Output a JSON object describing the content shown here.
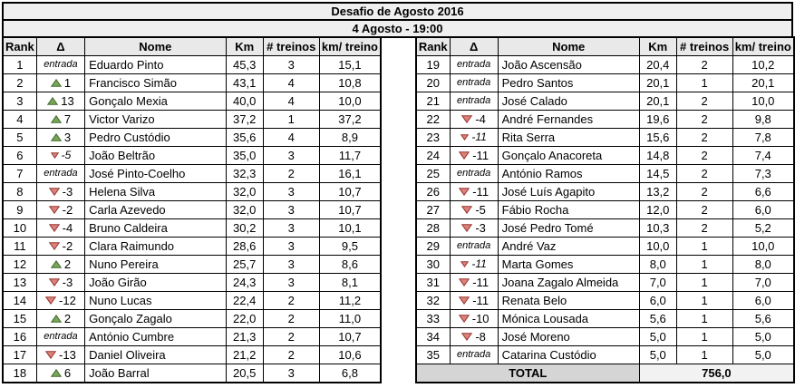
{
  "title": "Desafio de Agosto 2016",
  "subtitle": "4 Agosto - 19:00",
  "column_headers": [
    "Rank",
    "Δ",
    "Nome",
    "Km",
    "# treinos",
    "km/ treino"
  ],
  "colors": {
    "title_bg": "#efefef",
    "header_bg": "#e9e9e9",
    "total_label_bg": "#d5d5d5",
    "total_value_bg": "#f2f2f2",
    "up_arrow_fill": "#76a857",
    "up_arrow_stroke": "#44682f",
    "down_arrow_fill": "#d9837c",
    "down_arrow_stroke": "#99342e"
  },
  "left_table": {
    "rows": [
      {
        "rank": "1",
        "delta_dir": "entrada",
        "delta_label": "entrada",
        "nome": "Eduardo Pinto",
        "km": "45,3",
        "treinos": "3",
        "km_treino": "15,1"
      },
      {
        "rank": "2",
        "delta_dir": "up",
        "delta_label": "1",
        "nome": "Francisco Simão",
        "km": "43,1",
        "treinos": "4",
        "km_treino": "10,8"
      },
      {
        "rank": "3",
        "delta_dir": "up",
        "delta_label": "13",
        "nome": "Gonçalo Mexia",
        "km": "40,0",
        "treinos": "4",
        "km_treino": "10,0"
      },
      {
        "rank": "4",
        "delta_dir": "up",
        "delta_label": "7",
        "nome": "Victor Varizo",
        "km": "37,2",
        "treinos": "1",
        "km_treino": "37,2"
      },
      {
        "rank": "5",
        "delta_dir": "up",
        "delta_label": "3",
        "nome": "Pedro Custódio",
        "km": "35,6",
        "treinos": "4",
        "km_treino": "8,9"
      },
      {
        "rank": "6",
        "delta_dir": "down",
        "delta_label": "-5",
        "delta_style": "italic",
        "nome": "João Beltrão",
        "km": "35,0",
        "treinos": "3",
        "km_treino": "11,7"
      },
      {
        "rank": "7",
        "delta_dir": "entrada",
        "delta_label": "entrada",
        "nome": "José Pinto-Coelho",
        "km": "32,3",
        "treinos": "2",
        "km_treino": "16,1"
      },
      {
        "rank": "8",
        "delta_dir": "down",
        "delta_label": "-3",
        "nome": "Helena Silva",
        "km": "32,0",
        "treinos": "3",
        "km_treino": "10,7"
      },
      {
        "rank": "9",
        "delta_dir": "down",
        "delta_label": "-2",
        "nome": "Carla Azevedo",
        "km": "32,0",
        "treinos": "3",
        "km_treino": "10,7"
      },
      {
        "rank": "10",
        "delta_dir": "down",
        "delta_label": "-4",
        "nome": "Bruno Caldeira",
        "km": "30,2",
        "treinos": "3",
        "km_treino": "10,1"
      },
      {
        "rank": "11",
        "delta_dir": "down",
        "delta_label": "-2",
        "nome": "Clara Raimundo",
        "km": "28,6",
        "treinos": "3",
        "km_treino": "9,5"
      },
      {
        "rank": "12",
        "delta_dir": "up",
        "delta_label": "2",
        "nome": "Nuno Pereira",
        "km": "25,7",
        "treinos": "3",
        "km_treino": "8,6"
      },
      {
        "rank": "13",
        "delta_dir": "down",
        "delta_label": "-3",
        "nome": "João Girão",
        "km": "24,3",
        "treinos": "3",
        "km_treino": "8,1"
      },
      {
        "rank": "14",
        "delta_dir": "down",
        "delta_label": "-12",
        "nome": "Nuno Lucas",
        "km": "22,4",
        "treinos": "2",
        "km_treino": "11,2"
      },
      {
        "rank": "15",
        "delta_dir": "up",
        "delta_label": "2",
        "nome": "Gonçalo Zagalo",
        "km": "22,0",
        "treinos": "2",
        "km_treino": "11,0"
      },
      {
        "rank": "16",
        "delta_dir": "entrada",
        "delta_label": "entrada",
        "nome": "António Cumbre",
        "km": "21,3",
        "treinos": "2",
        "km_treino": "10,7"
      },
      {
        "rank": "17",
        "delta_dir": "down",
        "delta_label": "-13",
        "nome": "Daniel Oliveira",
        "km": "21,2",
        "treinos": "2",
        "km_treino": "10,6"
      },
      {
        "rank": "18",
        "delta_dir": "up",
        "delta_label": "6",
        "nome": "João Barral",
        "km": "20,5",
        "treinos": "3",
        "km_treino": "6,8"
      }
    ]
  },
  "right_table": {
    "rows": [
      {
        "rank": "19",
        "delta_dir": "entrada",
        "delta_label": "entrada",
        "nome": "João Ascensão",
        "km": "20,4",
        "treinos": "2",
        "km_treino": "10,2"
      },
      {
        "rank": "20",
        "delta_dir": "entrada",
        "delta_label": "entrada",
        "nome": "Pedro Santos",
        "km": "20,1",
        "treinos": "1",
        "km_treino": "20,1"
      },
      {
        "rank": "21",
        "delta_dir": "entrada",
        "delta_label": "entrada",
        "nome": "José Calado",
        "km": "20,1",
        "treinos": "2",
        "km_treino": "10,0"
      },
      {
        "rank": "22",
        "delta_dir": "down",
        "delta_label": "-4",
        "nome": "André Fernandes",
        "km": "19,6",
        "treinos": "2",
        "km_treino": "9,8"
      },
      {
        "rank": "23",
        "delta_dir": "down",
        "delta_label": "-11",
        "delta_style": "italic",
        "nome": "Rita Serra",
        "km": "15,6",
        "treinos": "2",
        "km_treino": "7,8"
      },
      {
        "rank": "24",
        "delta_dir": "down",
        "delta_label": "-11",
        "nome": "Gonçalo Anacoreta",
        "km": "14,8",
        "treinos": "2",
        "km_treino": "7,4"
      },
      {
        "rank": "25",
        "delta_dir": "entrada",
        "delta_label": "entrada",
        "nome": "António Ramos",
        "km": "14,5",
        "treinos": "2",
        "km_treino": "7,3"
      },
      {
        "rank": "26",
        "delta_dir": "down",
        "delta_label": "-11",
        "nome": "José Luís Agapito",
        "km": "13,2",
        "treinos": "2",
        "km_treino": "6,6"
      },
      {
        "rank": "27",
        "delta_dir": "down",
        "delta_label": "-5",
        "nome": "Fábio Rocha",
        "km": "12,0",
        "treinos": "2",
        "km_treino": "6,0"
      },
      {
        "rank": "28",
        "delta_dir": "down",
        "delta_label": "-3",
        "nome": "José Pedro Tomé",
        "km": "10,3",
        "treinos": "2",
        "km_treino": "5,2"
      },
      {
        "rank": "29",
        "delta_dir": "entrada",
        "delta_label": "entrada",
        "nome": "André Vaz",
        "km": "10,0",
        "treinos": "1",
        "km_treino": "10,0"
      },
      {
        "rank": "30",
        "delta_dir": "down",
        "delta_label": "-11",
        "delta_style": "italic",
        "nome": "Marta Gomes",
        "km": "8,0",
        "treinos": "1",
        "km_treino": "8,0"
      },
      {
        "rank": "31",
        "delta_dir": "down",
        "delta_label": "-11",
        "nome": "Joana Zagalo Almeida",
        "km": "7,0",
        "treinos": "1",
        "km_treino": "7,0"
      },
      {
        "rank": "32",
        "delta_dir": "down",
        "delta_label": "-11",
        "nome": "Renata Belo",
        "km": "6,0",
        "treinos": "1",
        "km_treino": "6,0"
      },
      {
        "rank": "33",
        "delta_dir": "down",
        "delta_label": "-10",
        "nome": "Mónica Lousada",
        "km": "5,6",
        "treinos": "1",
        "km_treino": "5,6"
      },
      {
        "rank": "34",
        "delta_dir": "down",
        "delta_label": "-8",
        "nome": "José Moreno",
        "km": "5,0",
        "treinos": "1",
        "km_treino": "5,0"
      },
      {
        "rank": "35",
        "delta_dir": "entrada",
        "delta_label": "entrada",
        "nome": "Catarina Custódio",
        "km": "5,0",
        "treinos": "1",
        "km_treino": "5,0"
      }
    ],
    "total_label": "TOTAL",
    "total_value": "756,0"
  }
}
